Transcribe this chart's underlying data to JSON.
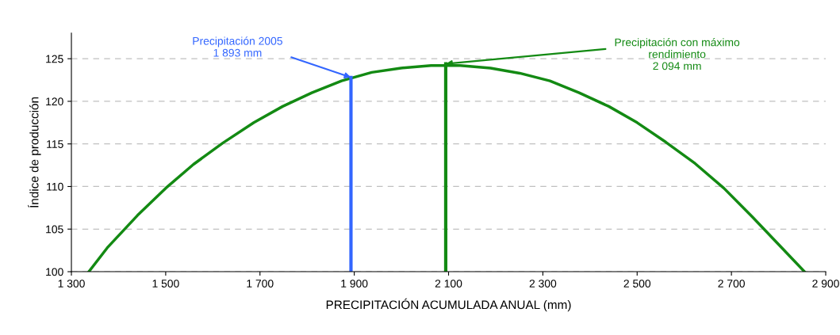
{
  "chart_data": {
    "type": "line",
    "xlabel": "PRECIPITACIÓN ACUMULADA ANUAL (mm)",
    "ylabel": "Índice de producción",
    "series": [
      {
        "color": "#138a13",
        "x": [
          1337,
          1376,
          1440,
          1500,
          1559,
          1621,
          1687,
          1748,
          1810,
          1873,
          1937,
          1999,
          2063,
          2125,
          2189,
          2251,
          2315,
          2377,
          2440,
          2500,
          2561,
          2623,
          2684,
          2745,
          2807,
          2855
        ],
        "values": [
          100,
          102.8,
          106.6,
          109.8,
          112.6,
          115.1,
          117.5,
          119.4,
          121.0,
          122.4,
          123.4,
          123.9,
          124.2,
          124.2,
          123.9,
          123.3,
          122.4,
          121.0,
          119.4,
          117.5,
          115.2,
          112.7,
          109.8,
          106.4,
          102.8,
          100
        ]
      },
      {
        "color": "#3366ff",
        "x": [
          1893,
          1893
        ],
        "values": [
          100,
          122.8
        ]
      },
      {
        "color": "#138a13",
        "x": [
          2094,
          2094
        ],
        "values": [
          100,
          124.4
        ]
      }
    ],
    "annotations": [
      {
        "text": "Precipitación 2005\n1 893 mm",
        "x": 1893,
        "y": 122.8
      },
      {
        "text": "Precipitación con máximo\nrendimiento\n2 094 mm",
        "x": 2094,
        "y": 124.4
      }
    ],
    "xlim": [
      1300,
      2900
    ],
    "xticks": [
      {
        "value": 1300,
        "label": "1 300"
      },
      {
        "value": 1500,
        "label": "1 500"
      },
      {
        "value": 1700,
        "label": "1 700"
      },
      {
        "value": 1900,
        "label": "1 900"
      },
      {
        "value": 2100,
        "label": "2 100"
      },
      {
        "value": 2300,
        "label": "2 300"
      },
      {
        "value": 2500,
        "label": "2 500"
      },
      {
        "value": 2700,
        "label": "2 700"
      },
      {
        "value": 2900,
        "label": "2 900"
      }
    ],
    "ylim": [
      100,
      128
    ],
    "yticks": [
      100,
      105,
      110,
      115,
      120,
      125
    ],
    "grid": "y",
    "line_style": "solid",
    "marker": "none"
  }
}
